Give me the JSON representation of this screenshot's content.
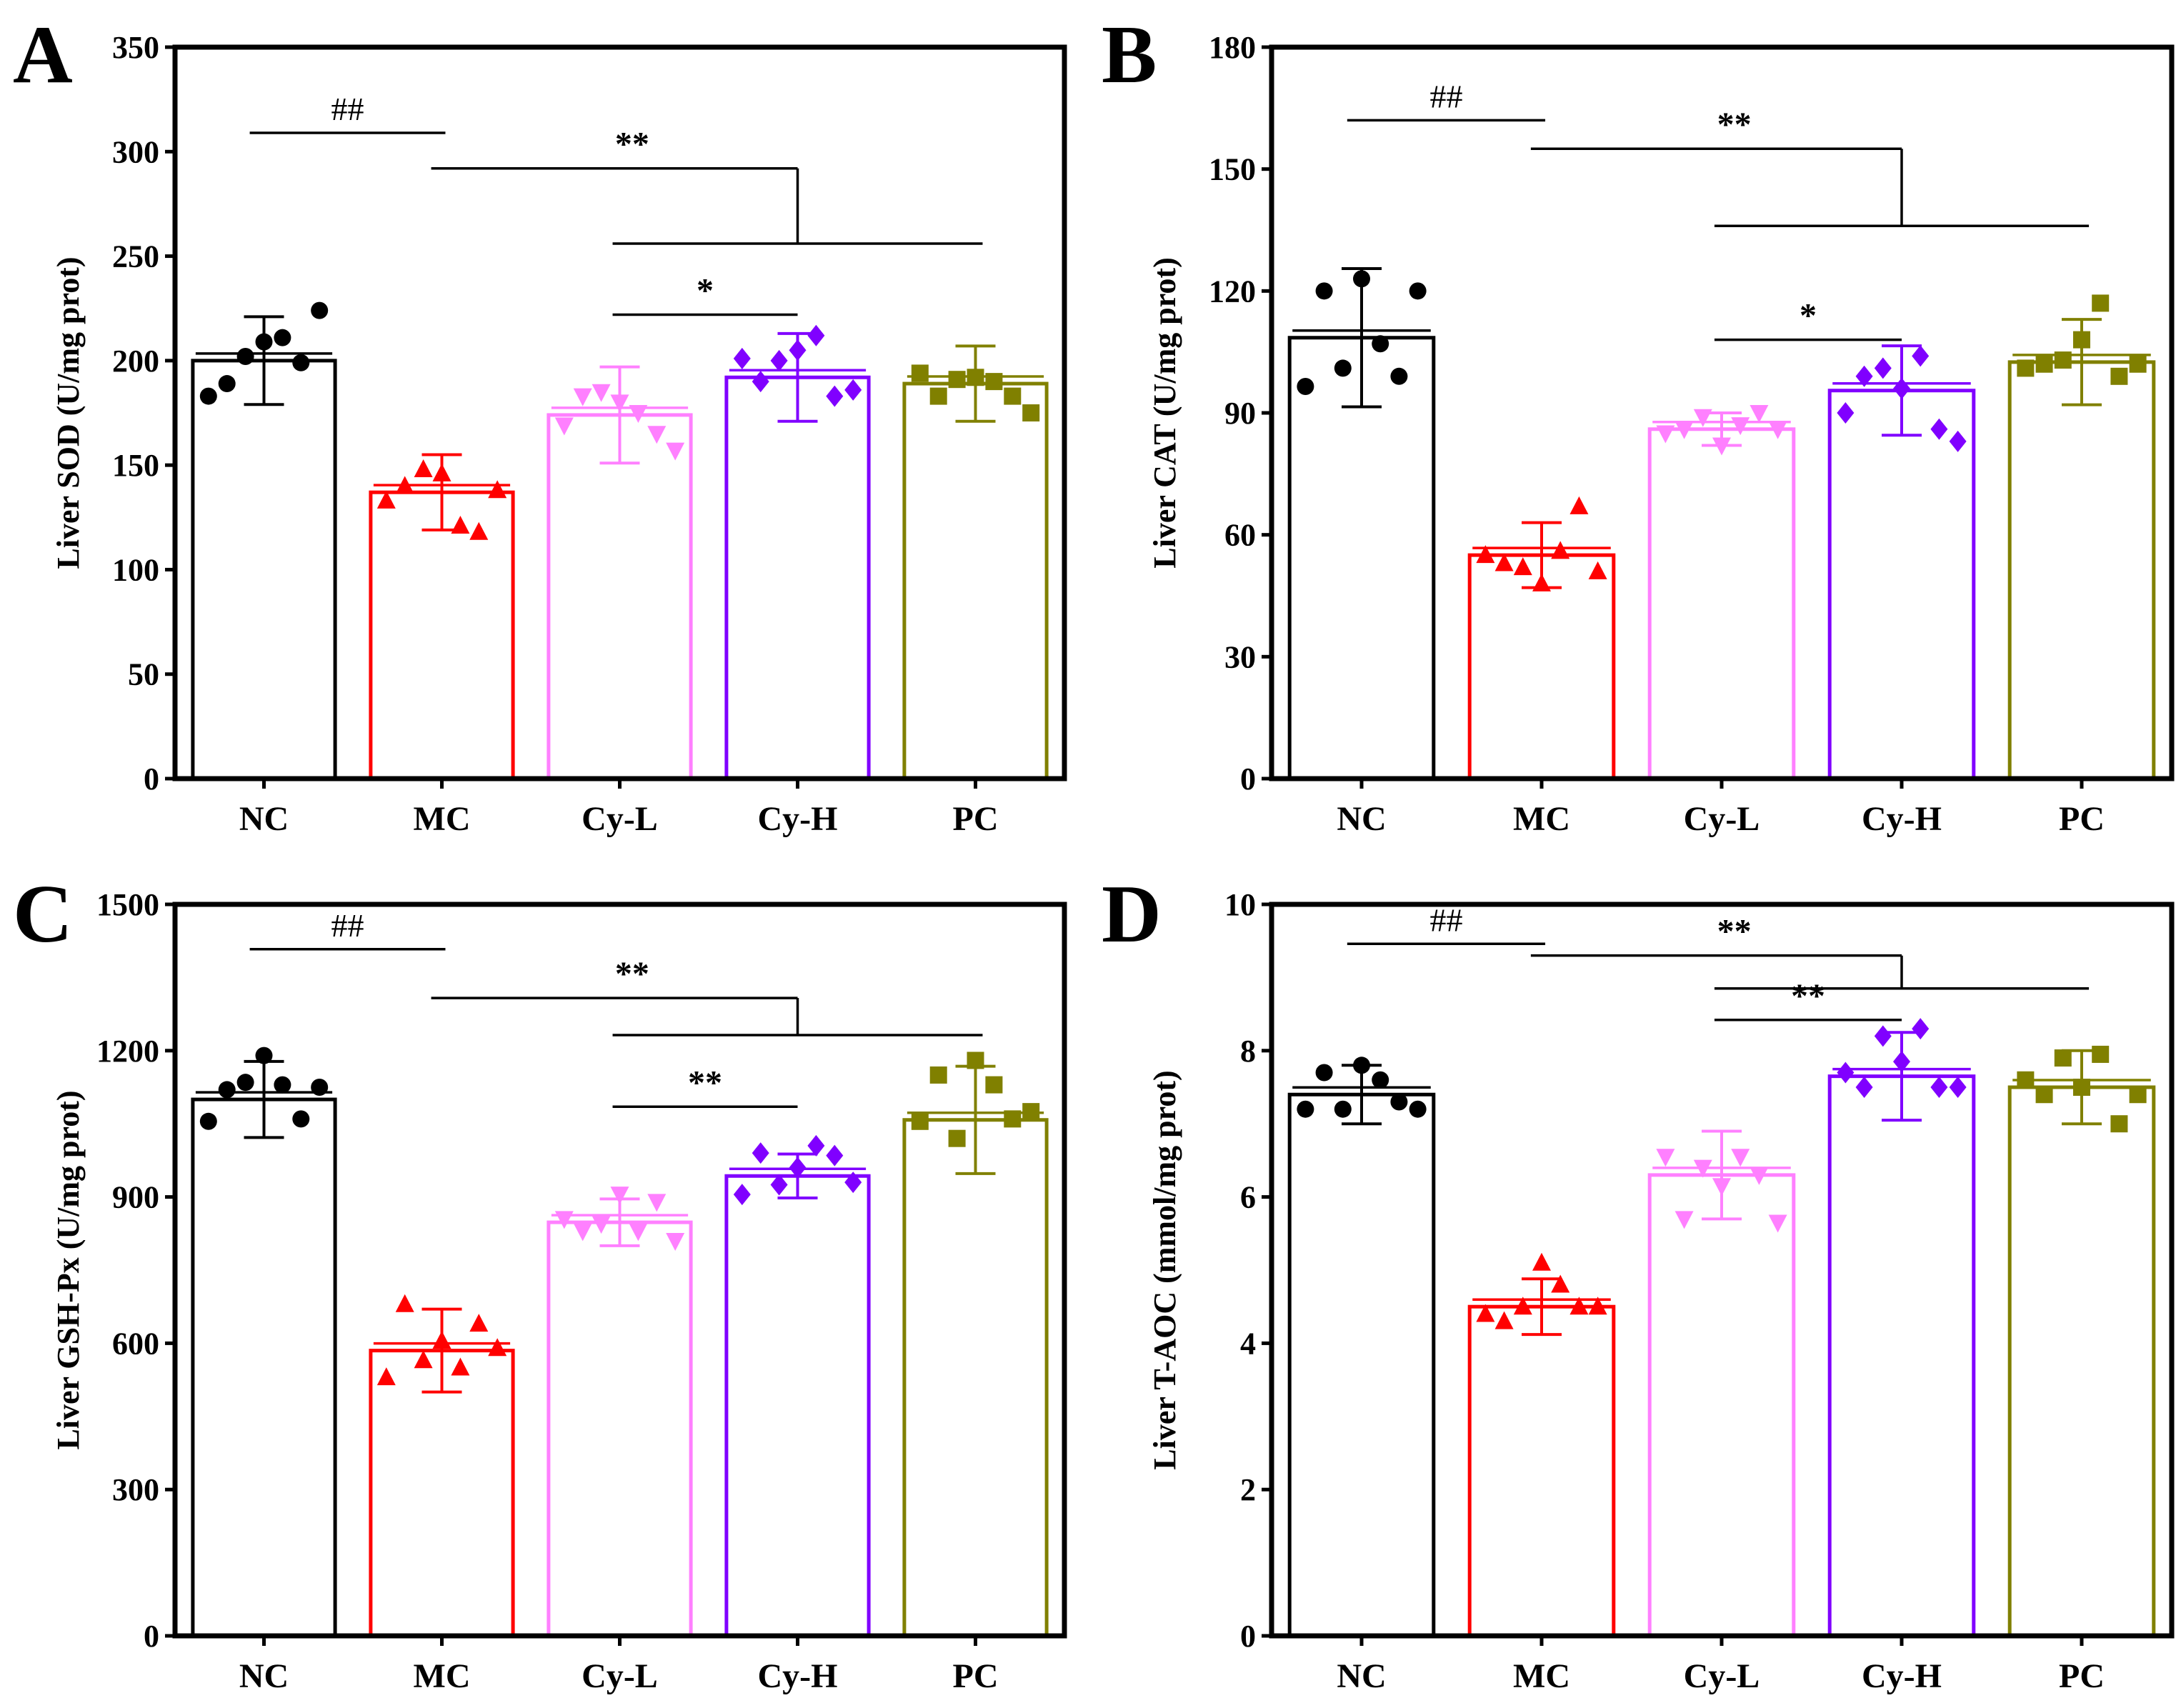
{
  "chart_data": [
    {
      "panel": "A",
      "type": "bar",
      "categories": [
        "NC",
        "MC",
        "Cy-L",
        "Cy-H",
        "PC"
      ],
      "ylabel": "Liver SOD (U/mg prot)",
      "ylim": [
        0,
        350
      ],
      "yticks": [
        0,
        50,
        100,
        150,
        200,
        250,
        300,
        350
      ],
      "means": [
        200,
        137,
        174,
        192,
        189
      ],
      "sd": [
        21,
        18,
        23,
        21,
        18
      ],
      "points": [
        [
          183,
          189,
          202,
          209,
          211,
          199,
          224
        ],
        [
          133,
          140,
          148,
          146,
          121,
          118,
          138
        ],
        [
          169,
          183,
          185,
          180,
          175,
          165,
          157
        ],
        [
          201,
          190,
          200,
          205,
          212,
          183,
          186
        ],
        [
          194,
          183,
          191,
          192,
          190,
          183,
          175
        ]
      ],
      "significance": [
        {
          "label": "##",
          "type": "pair",
          "from": 0,
          "to": 1,
          "y": 309
        },
        {
          "label": "**",
          "type": "fork",
          "from": 1,
          "targets_from": 2,
          "targets_to": 4,
          "y_top": 292,
          "y_bottom": 256
        },
        {
          "label": "*",
          "type": "pair",
          "from": 2,
          "to": 3,
          "y": 222
        }
      ]
    },
    {
      "panel": "B",
      "type": "bar",
      "categories": [
        "NC",
        "MC",
        "Cy-L",
        "Cy-H",
        "PC"
      ],
      "ylabel": "Liver CAT (U/mg prot)",
      "ylim": [
        0,
        180
      ],
      "yticks": [
        0,
        30,
        60,
        90,
        120,
        150,
        180
      ],
      "means": [
        108.5,
        55,
        86,
        95.5,
        102.5
      ],
      "sd": [
        17,
        8,
        4,
        11,
        10.5
      ],
      "points": [
        [
          96.5,
          120,
          101,
          123,
          107,
          99,
          120
        ],
        [
          55,
          53,
          52,
          48,
          56,
          67,
          51
        ],
        [
          85,
          86,
          89,
          82,
          87,
          90,
          86
        ],
        [
          90,
          99,
          101,
          96,
          104,
          86,
          83
        ],
        [
          101,
          102,
          103,
          108,
          117,
          99,
          102
        ]
      ],
      "significance": [
        {
          "label": "##",
          "type": "pair",
          "from": 0,
          "to": 1,
          "y": 162
        },
        {
          "label": "**",
          "type": "fork",
          "from": 1,
          "targets_from": 2,
          "targets_to": 4,
          "y_top": 155,
          "y_bottom": 136
        },
        {
          "label": "*",
          "type": "pair",
          "from": 2,
          "to": 3,
          "y": 108
        }
      ]
    },
    {
      "panel": "C",
      "type": "bar",
      "categories": [
        "NC",
        "MC",
        "Cy-L",
        "Cy-H",
        "PC"
      ],
      "ylabel": "Liver GSH-Px (U/mg prot)",
      "ylim": [
        0,
        1500
      ],
      "yticks": [
        0,
        300,
        600,
        900,
        1200,
        1500
      ],
      "means": [
        1100,
        585,
        848,
        943,
        1058
      ],
      "sd": [
        78,
        85,
        48,
        45,
        110
      ],
      "points": [
        [
          1055,
          1120,
          1135,
          1190,
          1130,
          1060,
          1125
        ],
        [
          530,
          680,
          565,
          605,
          550,
          640,
          590
        ],
        [
          855,
          830,
          845,
          905,
          830,
          890,
          810
        ],
        [
          905,
          990,
          925,
          960,
          1005,
          985,
          930
        ],
        [
          1055,
          1150,
          1020,
          1180,
          1130,
          1060,
          1075
        ]
      ],
      "significance": [
        {
          "label": "##",
          "type": "pair",
          "from": 0,
          "to": 1,
          "y": 1408
        },
        {
          "label": "**",
          "type": "fork",
          "from": 1,
          "targets_from": 2,
          "targets_to": 4,
          "y_top": 1308,
          "y_bottom": 1232
        },
        {
          "label": "**",
          "type": "pair",
          "from": 2,
          "to": 3,
          "y": 1085
        }
      ]
    },
    {
      "panel": "D",
      "type": "bar",
      "categories": [
        "NC",
        "MC",
        "Cy-L",
        "Cy-H",
        "PC"
      ],
      "ylabel": "Liver T-AOC (mmol/mg prot)",
      "ylim": [
        0,
        10
      ],
      "yticks": [
        0,
        2,
        4,
        6,
        8,
        10
      ],
      "means": [
        7.4,
        4.5,
        6.3,
        7.65,
        7.5
      ],
      "sd": [
        0.4,
        0.38,
        0.6,
        0.6,
        0.5
      ],
      "points": [
        [
          7.2,
          7.7,
          7.2,
          7.8,
          7.6,
          7.3,
          7.2
        ],
        [
          4.4,
          4.3,
          4.5,
          5.1,
          4.8,
          4.5,
          4.5
        ],
        [
          6.55,
          5.7,
          6.4,
          6.15,
          6.55,
          6.3,
          5.65
        ],
        [
          7.7,
          7.5,
          8.2,
          7.85,
          8.3,
          7.5,
          7.5
        ],
        [
          7.6,
          7.4,
          7.9,
          7.5,
          7.95,
          7.0,
          7.4
        ]
      ],
      "significance": [
        {
          "label": "##",
          "type": "pair",
          "from": 0,
          "to": 1,
          "y": 9.46
        },
        {
          "label": "**",
          "type": "fork",
          "from": 1,
          "targets_from": 2,
          "targets_to": 4,
          "y_top": 9.3,
          "y_bottom": 8.85
        },
        {
          "label": "**",
          "type": "pair",
          "from": 2,
          "to": 3,
          "y": 8.42
        }
      ]
    }
  ],
  "series_colors": [
    "#000000",
    "#ff0000",
    "#ff80ff",
    "#8000ff",
    "#808000"
  ],
  "marker_shapes": [
    "circle",
    "triangle-up",
    "triangle-down",
    "diamond",
    "square"
  ]
}
